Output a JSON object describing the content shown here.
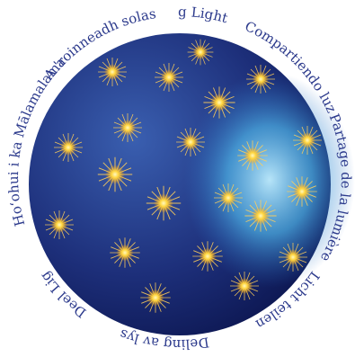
{
  "labels": [
    "Sharing Light",
    "Compartiendo luz",
    "Partage de la lumière",
    "Licht teilen",
    "Deling av lys",
    "Deel Lig",
    "Hoʻohui i ka Mālamalama",
    "A 'roinneadh solas"
  ]
}
